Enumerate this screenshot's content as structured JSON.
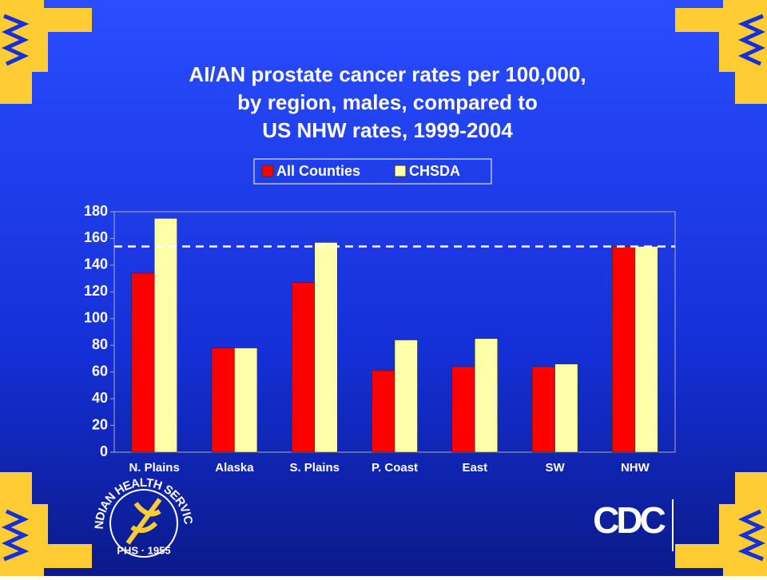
{
  "chart_data": {
    "type": "bar",
    "title_lines": [
      "AI/AN prostate cancer rates per 100,000,",
      "by region, males, compared to",
      "US NHW rates, 1999-2004"
    ],
    "categories": [
      "N. Plains",
      "Alaska",
      "S. Plains",
      "P. Coast",
      "East",
      "SW",
      "NHW"
    ],
    "series": [
      {
        "name": "All Counties",
        "color": "#ff0000",
        "values": [
          134,
          78,
          127,
          61,
          64,
          64,
          154
        ]
      },
      {
        "name": "CHSDA",
        "color": "#ffffaa",
        "values": [
          175,
          78,
          157,
          84,
          85,
          66,
          154
        ]
      }
    ],
    "reference_line": 154,
    "ylim": [
      0,
      180
    ],
    "yticks": [
      0,
      20,
      40,
      60,
      80,
      100,
      120,
      140,
      160,
      180
    ]
  },
  "logos": {
    "ihs_ring": "INDIAN HEALTH SERVICE",
    "ihs_sub": "PHS · 1955",
    "cdc": "CDC"
  }
}
